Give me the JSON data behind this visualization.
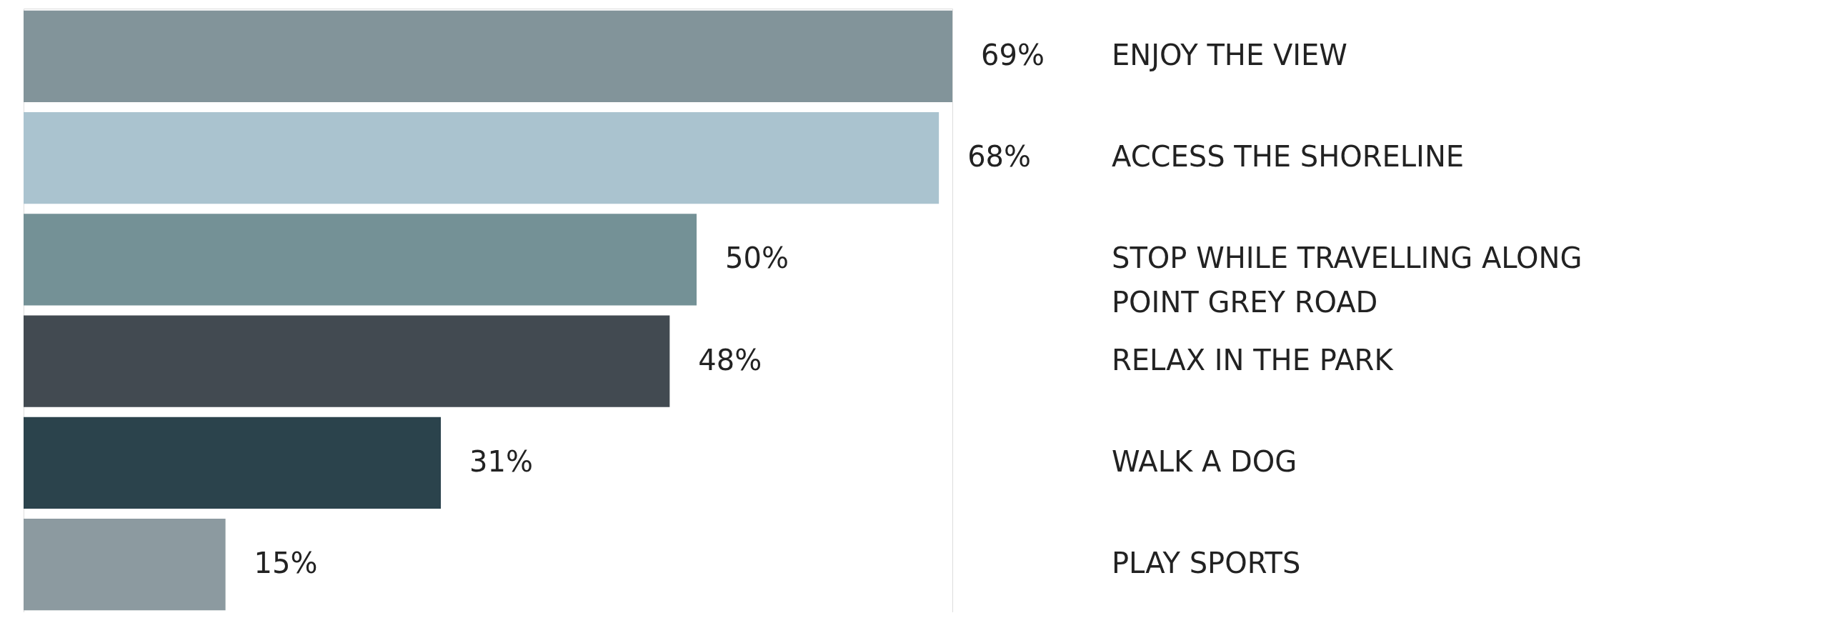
{
  "chart_data": {
    "type": "bar",
    "orientation": "horizontal",
    "value_labels": [
      "69%",
      "68%",
      "50%",
      "48%",
      "31%",
      "15%"
    ],
    "categories": [
      "ENJOY THE VIEW",
      "ACCESS THE SHORELINE",
      "STOP WHILE TRAVELLING ALONG POINT GREY ROAD",
      "RELAX IN THE PARK",
      "WALK A DOG",
      "PLAY SPORTS"
    ],
    "values": [
      69,
      68,
      50,
      48,
      31,
      15
    ],
    "colors": [
      "#82949a",
      "#aac3cf",
      "#749196",
      "#424a51",
      "#2b434c",
      "#8c9aa0"
    ]
  }
}
